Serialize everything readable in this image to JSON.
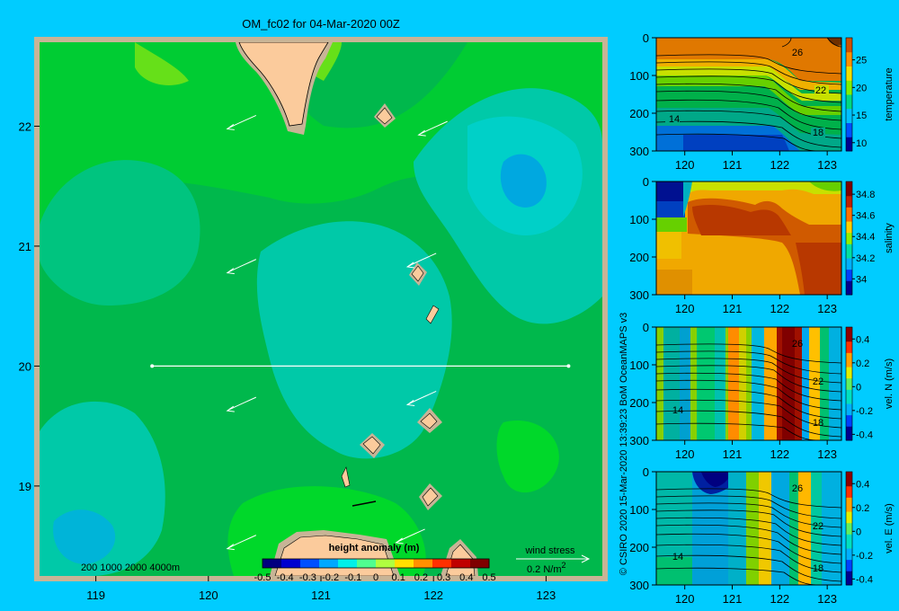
{
  "title": "OM_fc02 for 04-Mar-2020 00Z",
  "credit": "© CSIRO 2020   15-Mar-2020 13:39:23 BoM OceanMAPS v3",
  "colors": {
    "background": "#00ccff",
    "frame": "#c8b496",
    "land": "#fbcb9c"
  },
  "depth_contours_label": "200  1000  2000  4000m",
  "wind_stress": {
    "label": "wind stress",
    "scale": "0.2 N/m",
    "superscript": "2"
  },
  "chart_data": [
    {
      "type": "heatmap",
      "name": "map",
      "title": "OM_fc02 for 04-Mar-2020 00Z",
      "xlim": [
        118.5,
        123.5
      ],
      "ylim": [
        18.25,
        22.7
      ],
      "x_ticks": [
        119,
        120,
        121,
        122,
        123
      ],
      "y_ticks": [
        19,
        20,
        21,
        22
      ],
      "section_line": {
        "lat": 20,
        "lon": [
          119.5,
          123.2
        ]
      },
      "colorbar": {
        "label": "height anomaly (m)",
        "ticks": [
          "-0.5",
          "-0.4",
          "-0.3",
          "-0.2",
          "-0.1",
          "0",
          "0.1",
          "0.2",
          "0.3",
          "0.4",
          "0.5"
        ],
        "range": [
          -0.5,
          0.5
        ]
      },
      "wind_arrows": [
        {
          "lon": 120.2,
          "lat": 22.0
        },
        {
          "lon": 121.9,
          "lat": 21.95
        },
        {
          "lon": 120.2,
          "lat": 20.8
        },
        {
          "lon": 121.8,
          "lat": 20.85
        },
        {
          "lon": 120.2,
          "lat": 19.65
        },
        {
          "lon": 121.8,
          "lat": 19.7
        },
        {
          "lon": 120.2,
          "lat": 18.5
        },
        {
          "lon": 121.7,
          "lat": 18.55
        }
      ]
    },
    {
      "type": "heatmap",
      "name": "temperature",
      "xlim": [
        119.4,
        123.3
      ],
      "ylim": [
        300,
        0
      ],
      "x_ticks": [
        120,
        121,
        122,
        123
      ],
      "y_ticks": [
        0,
        100,
        200,
        300
      ],
      "colorbar": {
        "label": "temperature",
        "ticks": [
          "10",
          "15",
          "20",
          "25"
        ],
        "range": [
          8.5,
          29
        ]
      },
      "contour_labels": [
        "26",
        "22",
        "18",
        "14"
      ]
    },
    {
      "type": "heatmap",
      "name": "salinity",
      "xlim": [
        119.4,
        123.3
      ],
      "ylim": [
        300,
        0
      ],
      "x_ticks": [
        120,
        121,
        122,
        123
      ],
      "y_ticks": [
        0,
        100,
        200,
        300
      ],
      "colorbar": {
        "label": "salinity",
        "ticks": [
          "34",
          "34.2",
          "34.4",
          "34.6",
          "34.8"
        ],
        "range": [
          33.85,
          34.92
        ]
      },
      "contour_labels": []
    },
    {
      "type": "heatmap",
      "name": "velocity_north",
      "xlim": [
        119.4,
        123.3
      ],
      "ylim": [
        300,
        0
      ],
      "x_ticks": [
        120,
        121,
        122,
        123
      ],
      "y_ticks": [
        0,
        100,
        200,
        300
      ],
      "colorbar": {
        "label": "vel. N  (m/s)",
        "ticks": [
          "-0.4",
          "-0.2",
          "0",
          "0.2",
          "0.4"
        ],
        "range": [
          -0.45,
          0.5
        ]
      },
      "contour_labels": [
        "26",
        "22",
        "18",
        "14"
      ]
    },
    {
      "type": "heatmap",
      "name": "velocity_east",
      "xlim": [
        119.4,
        123.3
      ],
      "ylim": [
        300,
        0
      ],
      "x_ticks": [
        120,
        121,
        122,
        123
      ],
      "y_ticks": [
        0,
        100,
        200,
        300
      ],
      "colorbar": {
        "label": "vel. E  (m/s)",
        "ticks": [
          "-0.4",
          "-0.2",
          "0",
          "0.2",
          "0.4"
        ],
        "range": [
          -0.45,
          0.5
        ]
      },
      "contour_labels": [
        "26",
        "22",
        "18",
        "14"
      ]
    }
  ]
}
